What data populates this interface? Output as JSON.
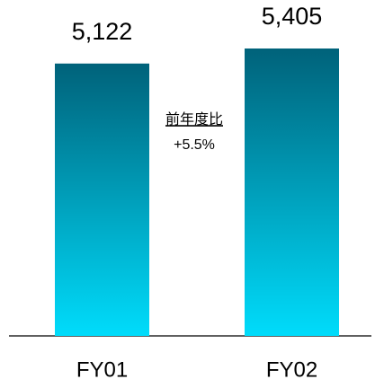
{
  "chart_data": {
    "type": "bar",
    "categories": [
      "FY01",
      "FY02"
    ],
    "values": [
      5122,
      5405
    ],
    "value_labels": [
      "5,122",
      "5,405"
    ],
    "color": [
      "#00627a",
      "#00dcfb"
    ],
    "annotations": [
      "前年度比",
      "+5.5%"
    ]
  }
}
